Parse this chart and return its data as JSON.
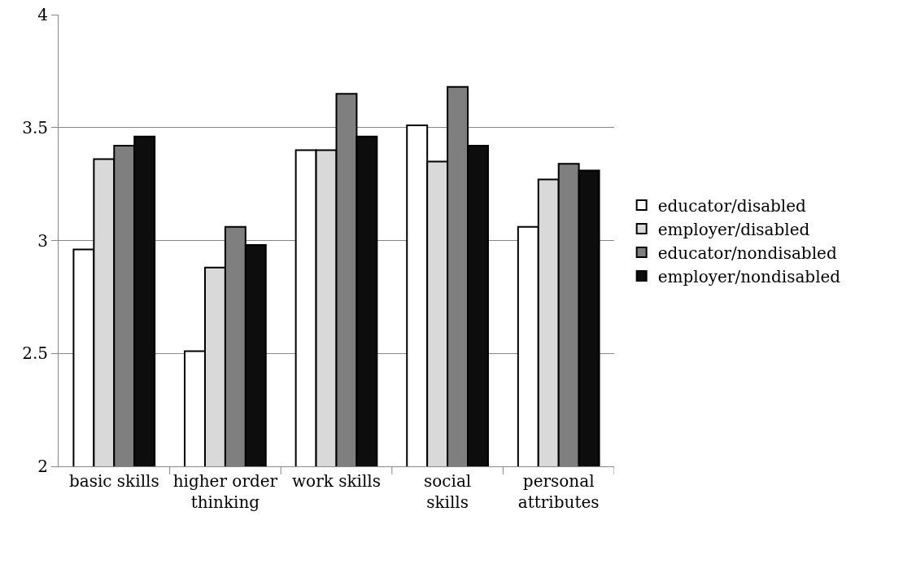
{
  "chart_data": {
    "type": "bar",
    "categories": [
      "basic skills",
      "higher order thinking",
      "work skills",
      "social skills",
      "personal attributes"
    ],
    "series": [
      {
        "name": "educator/disabled",
        "color": "#ffffff",
        "values": [
          2.96,
          2.51,
          3.4,
          3.51,
          3.06
        ]
      },
      {
        "name": "employer/disabled",
        "color": "#d9d9d9",
        "values": [
          3.36,
          2.88,
          3.4,
          3.35,
          3.27
        ]
      },
      {
        "name": "educator/nondisabled",
        "color": "#7f7f7f",
        "values": [
          3.42,
          3.06,
          3.65,
          3.68,
          3.34
        ]
      },
      {
        "name": "employer/nondisabled",
        "color": "#0d0d0d",
        "values": [
          3.46,
          2.98,
          3.46,
          3.42,
          3.31
        ]
      }
    ],
    "ylim": [
      2,
      4
    ],
    "yticks": [
      2,
      2.5,
      3,
      3.5,
      4
    ],
    "grid": "y",
    "legend": "right"
  }
}
